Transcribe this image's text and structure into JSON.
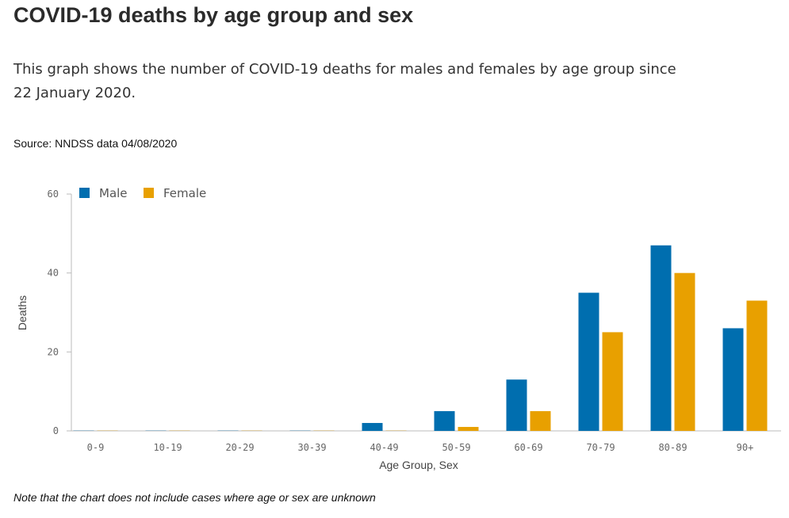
{
  "page": {
    "title": "COVID-19 deaths by age group and sex",
    "description": "This graph shows the number of COVID-19 deaths for males and females by age group since 22 January 2020.",
    "source": "Source: NNDSS data 04/08/2020",
    "note": "Note that the chart does not include cases where age or sex are unknown"
  },
  "chart_data": {
    "type": "bar",
    "title": "",
    "xlabel": "Age Group, Sex",
    "ylabel": "Deaths",
    "ylim": [
      0,
      60
    ],
    "yticks": [
      0,
      20,
      40,
      60
    ],
    "grid": false,
    "legend_position": "top-left",
    "categories": [
      "0-9",
      "10-19",
      "20-29",
      "30-39",
      "40-49",
      "50-59",
      "60-69",
      "70-79",
      "80-89",
      "90+"
    ],
    "series": [
      {
        "name": "Male",
        "color": "#006eaf",
        "values": [
          0,
          0,
          0,
          0,
          2,
          5,
          13,
          35,
          47,
          26
        ]
      },
      {
        "name": "Female",
        "color": "#e8a000",
        "values": [
          0,
          0,
          0,
          0,
          0,
          1,
          5,
          25,
          40,
          33
        ]
      }
    ]
  }
}
